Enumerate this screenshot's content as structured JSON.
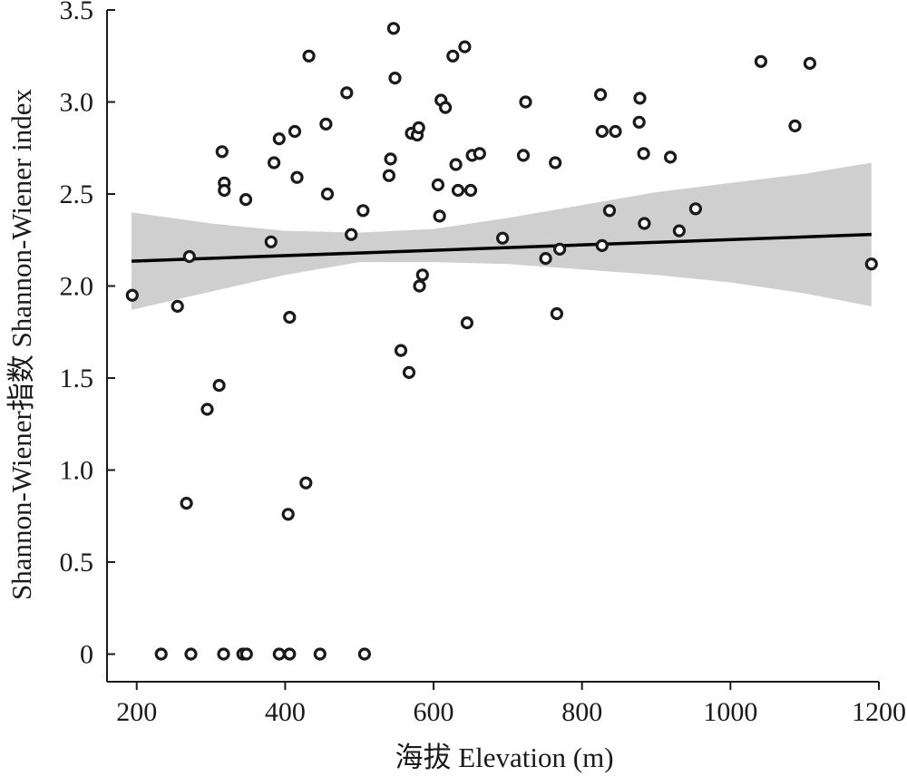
{
  "chart_data": {
    "type": "scatter",
    "title": "",
    "xlabel": "海拔 Elevation (m)",
    "ylabel": "Shannon-Wiener指数 Shannon-Wiener index",
    "xlim": [
      160,
      1200
    ],
    "ylim": [
      -0.15,
      3.5
    ],
    "x_ticks": [
      "200",
      "400",
      "600",
      "800",
      "1000",
      "1200"
    ],
    "y_ticks": [
      "0",
      "0.5",
      "1.0",
      "1.5",
      "2.0",
      "2.5",
      "3.0",
      "3.5"
    ],
    "grid": false,
    "legend": "none",
    "colors": {
      "points": "#1a1a1a",
      "band": "#cfcfcf",
      "line": "#000000",
      "axis": "#1a1a1a"
    },
    "points": [
      [
        194,
        1.95
      ],
      [
        233,
        0.0
      ],
      [
        255,
        1.89
      ],
      [
        267,
        0.82
      ],
      [
        271,
        2.16
      ],
      [
        273,
        0.0
      ],
      [
        295,
        1.33
      ],
      [
        311,
        1.46
      ],
      [
        315,
        2.73
      ],
      [
        317,
        0.0
      ],
      [
        318,
        2.56
      ],
      [
        318,
        2.52
      ],
      [
        343,
        0.0
      ],
      [
        347,
        2.47
      ],
      [
        348,
        0.0
      ],
      [
        381,
        2.24
      ],
      [
        385,
        2.67
      ],
      [
        392,
        2.8
      ],
      [
        392,
        0.0
      ],
      [
        404,
        0.76
      ],
      [
        406,
        1.83
      ],
      [
        406,
        0.0
      ],
      [
        413,
        2.84
      ],
      [
        416,
        2.59
      ],
      [
        428,
        0.93
      ],
      [
        432,
        3.25
      ],
      [
        447,
        0.0
      ],
      [
        455,
        2.88
      ],
      [
        457,
        2.5
      ],
      [
        483,
        3.05
      ],
      [
        489,
        2.28
      ],
      [
        505,
        2.41
      ],
      [
        507,
        0.0
      ],
      [
        540,
        2.6
      ],
      [
        542,
        2.69
      ],
      [
        546,
        3.4
      ],
      [
        548,
        3.13
      ],
      [
        556,
        1.65
      ],
      [
        567,
        1.53
      ],
      [
        570,
        2.83
      ],
      [
        578,
        2.82
      ],
      [
        580,
        2.86
      ],
      [
        581,
        2.0
      ],
      [
        585,
        2.06
      ],
      [
        606,
        2.55
      ],
      [
        608,
        2.38
      ],
      [
        610,
        3.01
      ],
      [
        616,
        2.97
      ],
      [
        626,
        3.25
      ],
      [
        630,
        2.66
      ],
      [
        633,
        2.52
      ],
      [
        642,
        3.3
      ],
      [
        645,
        1.8
      ],
      [
        650,
        2.52
      ],
      [
        652,
        2.71
      ],
      [
        662,
        2.72
      ],
      [
        693,
        2.26
      ],
      [
        721,
        2.71
      ],
      [
        724,
        3.0
      ],
      [
        751,
        2.15
      ],
      [
        764,
        2.67
      ],
      [
        766,
        1.85
      ],
      [
        770,
        2.2
      ],
      [
        825,
        3.04
      ],
      [
        827,
        2.84
      ],
      [
        827,
        2.22
      ],
      [
        837,
        2.41
      ],
      [
        845,
        2.84
      ],
      [
        877,
        2.89
      ],
      [
        878,
        3.02
      ],
      [
        883,
        2.72
      ],
      [
        884,
        2.34
      ],
      [
        919,
        2.7
      ],
      [
        931,
        2.3
      ],
      [
        953,
        2.42
      ],
      [
        1041,
        3.22
      ],
      [
        1087,
        2.87
      ],
      [
        1107,
        3.21
      ],
      [
        1190,
        2.12
      ]
    ],
    "regression_line": {
      "x": [
        193,
        1190
      ],
      "y": [
        2.135,
        2.28
      ]
    },
    "confidence_band": {
      "x": [
        193,
        300,
        400,
        500,
        600,
        700,
        800,
        900,
        1000,
        1100,
        1190
      ],
      "upper": [
        2.4,
        2.34,
        2.3,
        2.29,
        2.31,
        2.37,
        2.44,
        2.51,
        2.56,
        2.61,
        2.67
      ],
      "lower": [
        1.87,
        1.97,
        2.06,
        2.13,
        2.13,
        2.12,
        2.09,
        2.06,
        2.02,
        1.96,
        1.89
      ]
    }
  }
}
